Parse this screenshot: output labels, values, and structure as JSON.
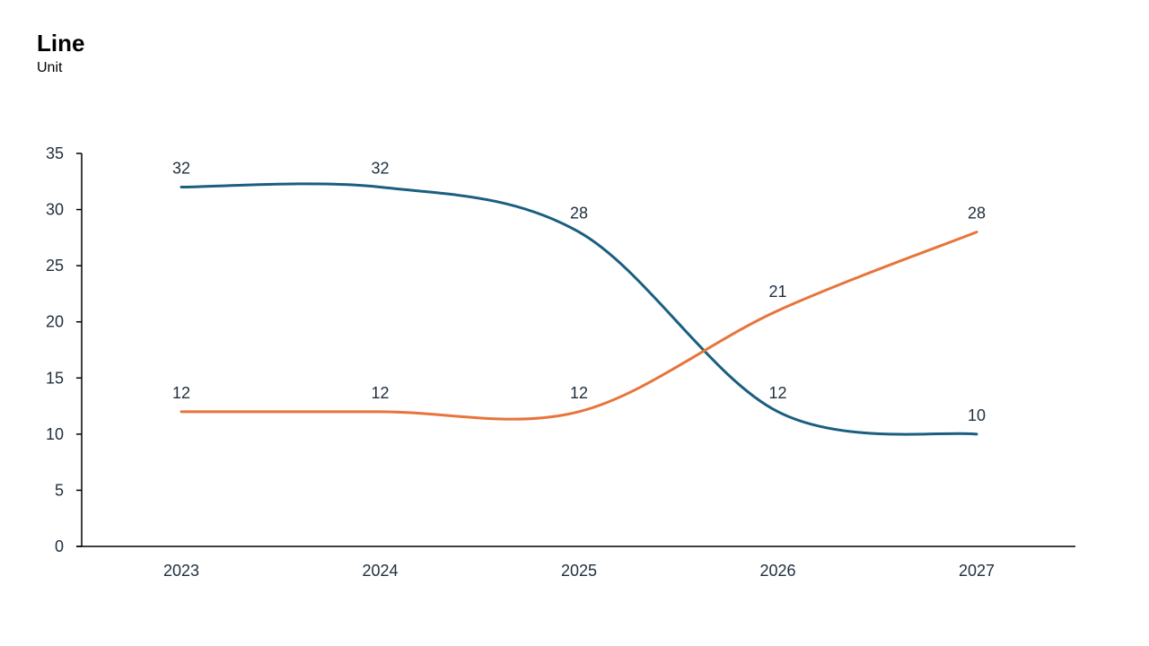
{
  "header": {
    "title": "Line",
    "subtitle": "Unit"
  },
  "chart_data": {
    "type": "line",
    "title": "Line",
    "subtitle": "Unit",
    "xlabel": "",
    "ylabel": "",
    "categories": [
      "2023",
      "2024",
      "2025",
      "2026",
      "2027"
    ],
    "yticks": [
      0,
      5,
      10,
      15,
      20,
      25,
      30,
      35
    ],
    "ylim": [
      0,
      35
    ],
    "grid": false,
    "legend": "none",
    "data_labels": true,
    "smooth": true,
    "series": [
      {
        "values": [
          32,
          32,
          28,
          12,
          10
        ],
        "color": "#1a5e80"
      },
      {
        "values": [
          12,
          12,
          12,
          21,
          28
        ],
        "color": "#e8743b"
      }
    ]
  }
}
